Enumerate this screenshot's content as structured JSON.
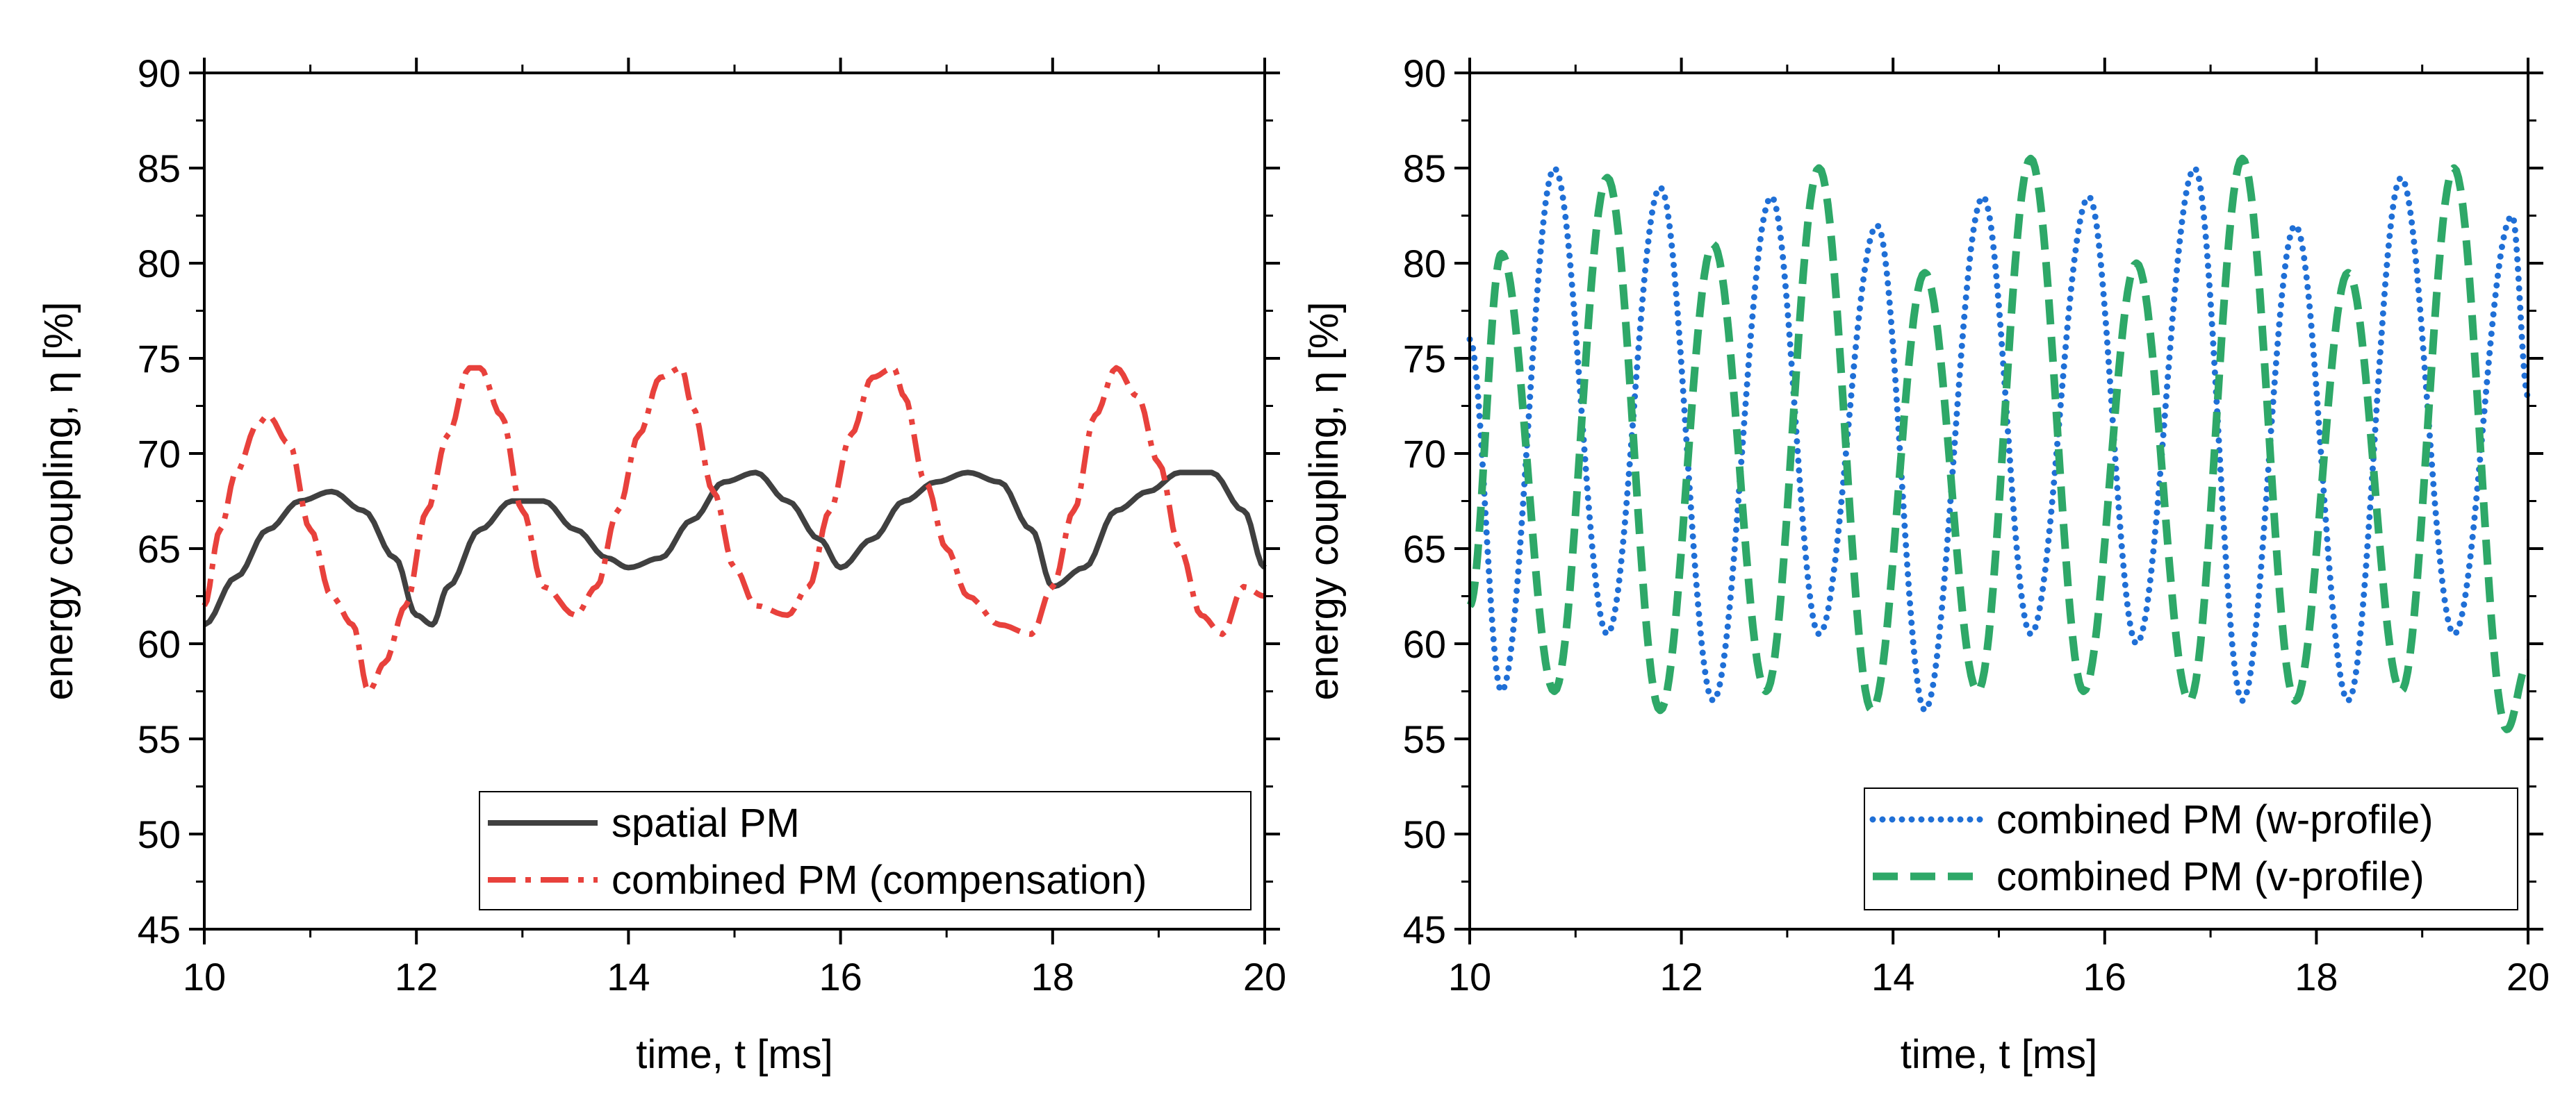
{
  "chart_data": [
    {
      "type": "line",
      "xlabel": "time, t [ms]",
      "ylabel": "energy coupling, η [%]",
      "xlim": [
        10,
        20
      ],
      "ylim": [
        45,
        90
      ],
      "xticks": [
        10,
        12,
        14,
        16,
        18,
        20
      ],
      "yticks": [
        45,
        50,
        55,
        60,
        65,
        70,
        75,
        80,
        85,
        90
      ],
      "legend_position": "bottom-right",
      "series": [
        {
          "name": "spatial PM",
          "color": "#404040",
          "style": "solid",
          "x": [
            10,
            10.3,
            10.6,
            10.9,
            11.2,
            11.5,
            11.8,
            12.0,
            12.15,
            12.3,
            12.6,
            12.9,
            13.2,
            13.5,
            13.8,
            14.0,
            14.3,
            14.6,
            14.9,
            15.2,
            15.5,
            15.8,
            16.0,
            16.3,
            16.6,
            16.9,
            17.2,
            17.5,
            17.8,
            18.0,
            18.3,
            18.6,
            18.9,
            19.2,
            19.5,
            19.8,
            20.0
          ],
          "y": [
            61,
            63.5,
            66,
            67.5,
            68,
            67,
            64.5,
            61.5,
            61,
            63,
            66,
            67.5,
            67.5,
            66,
            64.5,
            64,
            64.5,
            66.5,
            68.5,
            69,
            67.5,
            65.5,
            64,
            65.5,
            67.5,
            68.5,
            69,
            68.5,
            66,
            63,
            64,
            67,
            68,
            69,
            69,
            67,
            64
          ]
        },
        {
          "name": "combined PM (compensation)",
          "color": "#e8413c",
          "style": "dashdot",
          "x": [
            10,
            10.15,
            10.3,
            10.5,
            10.6,
            10.8,
            11.0,
            11.2,
            11.4,
            11.55,
            11.7,
            11.9,
            12.1,
            12.3,
            12.5,
            12.6,
            12.8,
            13.0,
            13.2,
            13.5,
            13.7,
            13.9,
            14.1,
            14.3,
            14.5,
            14.6,
            14.8,
            15.0,
            15.2,
            15.5,
            15.7,
            15.9,
            16.1,
            16.3,
            16.5,
            16.6,
            16.8,
            17.0,
            17.2,
            17.5,
            17.8,
            18.0,
            18.2,
            18.4,
            18.6,
            18.8,
            19.0,
            19.2,
            19.4,
            19.6,
            19.8,
            20.0
          ],
          "y": [
            62,
            66,
            69,
            71.5,
            72,
            70.5,
            66,
            62.5,
            61,
            57.5,
            59,
            62,
            67,
            71,
            74.5,
            74.5,
            72,
            67,
            63,
            61.5,
            63,
            67,
            71,
            74,
            74.5,
            72.5,
            68,
            64,
            62,
            61.5,
            63,
            67,
            71,
            74,
            74.5,
            73,
            68.5,
            65,
            62.5,
            61,
            60.5,
            63,
            67,
            72,
            74.5,
            73,
            69.5,
            65,
            61.5,
            60.5,
            63,
            62.5
          ]
        }
      ]
    },
    {
      "type": "line",
      "xlabel": "time, t [ms]",
      "ylabel": "energy coupling, η [%]",
      "xlim": [
        10,
        20
      ],
      "ylim": [
        45,
        90
      ],
      "xticks": [
        10,
        12,
        14,
        16,
        18,
        20
      ],
      "yticks": [
        45,
        50,
        55,
        60,
        65,
        70,
        75,
        80,
        85,
        90
      ],
      "legend_position": "bottom-right",
      "series": [
        {
          "name": "combined PM (w-profile)",
          "color": "#1f6fd6",
          "style": "dotted",
          "period_ms": 1.0,
          "x": [
            10,
            10.3,
            10.8,
            11.3,
            11.8,
            12.3,
            12.85,
            13.3,
            13.85,
            14.3,
            14.85,
            15.3,
            15.85,
            16.3,
            16.85,
            17.3,
            17.8,
            18.3,
            18.8,
            19.3,
            19.85,
            20.0
          ],
          "y": [
            76,
            57.5,
            85,
            60.5,
            84,
            57,
            83.5,
            60.5,
            82,
            56.5,
            83.5,
            60.5,
            83.5,
            60,
            85,
            57,
            82,
            57,
            84.5,
            60.5,
            82.5,
            73
          ]
        },
        {
          "name": "combined PM (v-profile)",
          "color": "#2ea868",
          "style": "dashed",
          "period_ms": 1.0,
          "x": [
            10,
            10.3,
            10.8,
            11.3,
            11.8,
            12.3,
            12.8,
            13.3,
            13.8,
            14.3,
            14.8,
            15.3,
            15.8,
            16.3,
            16.8,
            17.3,
            17.8,
            18.3,
            18.8,
            19.3,
            19.8,
            20.0
          ],
          "y": [
            62,
            80.5,
            57.5,
            84.5,
            56.5,
            81,
            57.5,
            85,
            56.5,
            79.5,
            57.5,
            85.5,
            57.5,
            80,
            57,
            85.5,
            57,
            79.5,
            57.5,
            85,
            55.5,
            59
          ]
        }
      ]
    }
  ]
}
